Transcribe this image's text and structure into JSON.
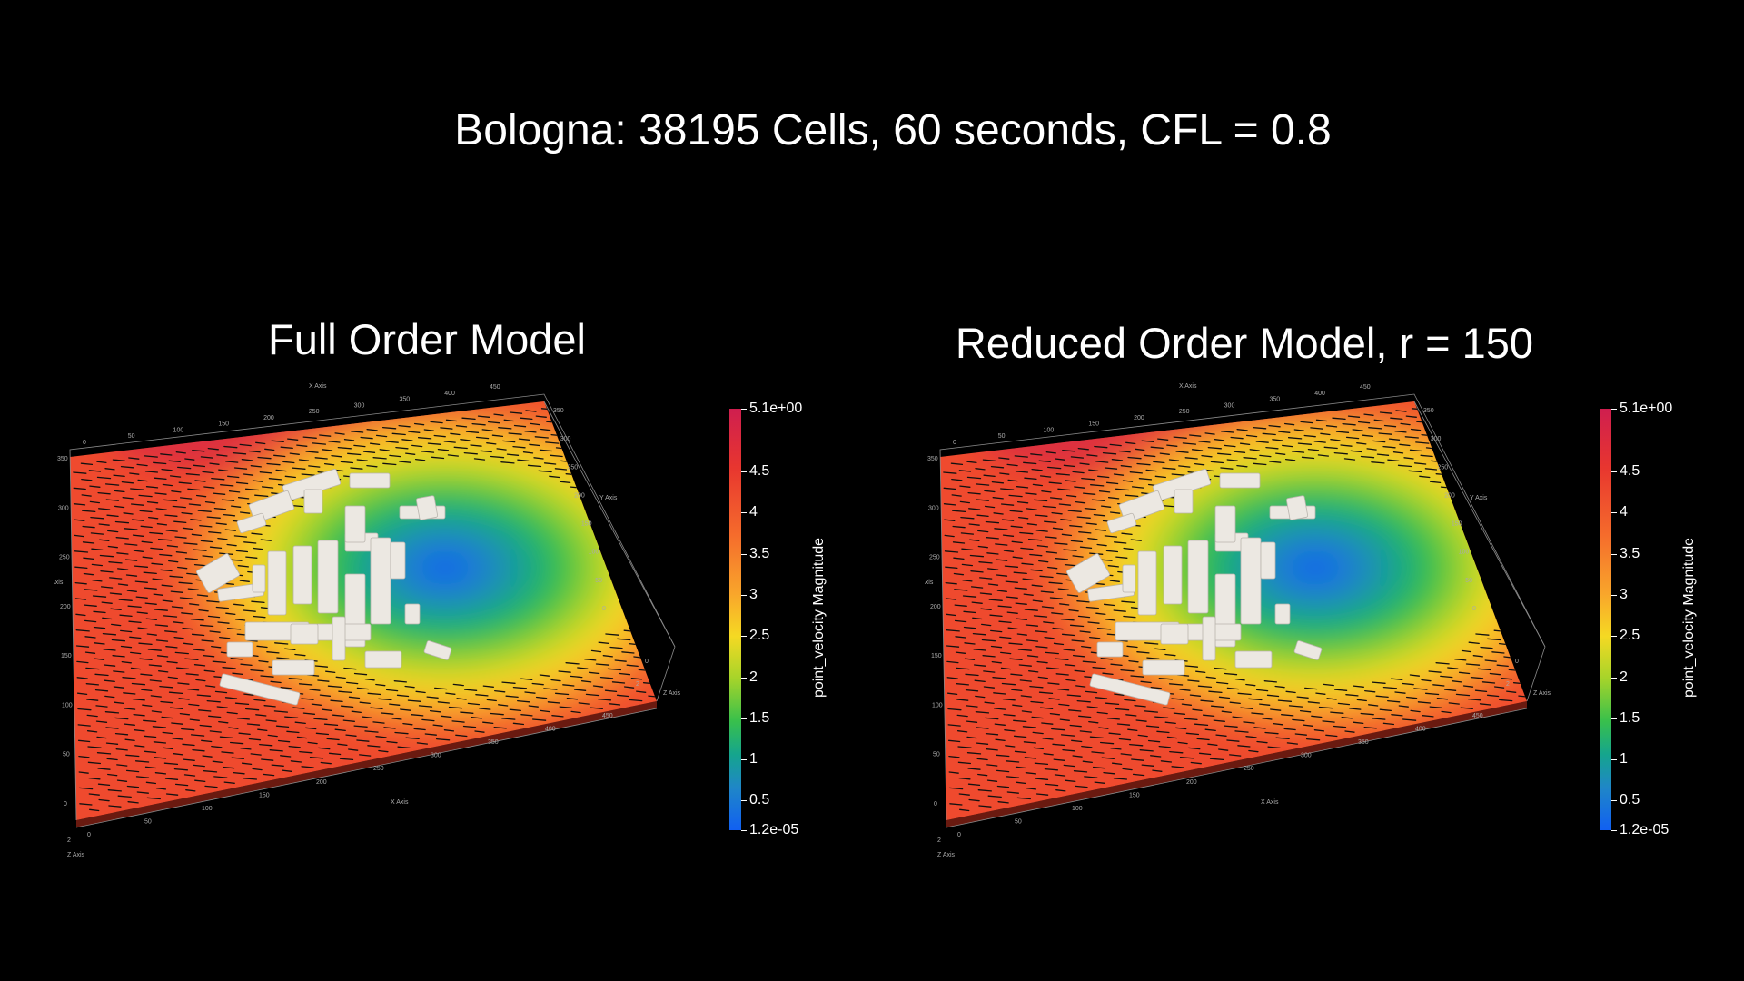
{
  "title": "Bologna: 38195 Cells, 60 seconds, CFL = 0.8",
  "panels": [
    {
      "title": "Full Order Model",
      "colorbar": {
        "label": "point_velocity Magnitude",
        "max_label": "5.1e+00",
        "min_label": "1.2e-05",
        "ticks": [
          "4.5",
          "4",
          "3.5",
          "3",
          "2.5",
          "2",
          "1.5",
          "1",
          "0.5"
        ]
      }
    },
    {
      "title": "Reduced Order Model, r = 150",
      "colorbar": {
        "label": "point_velocity Magnitude",
        "max_label": "5.1e+00",
        "min_label": "1.2e-05",
        "ticks": [
          "4.5",
          "4",
          "3.5",
          "3",
          "2.5",
          "2",
          "1.5",
          "1",
          "0.5"
        ]
      }
    }
  ],
  "colors": {
    "background": "#000000",
    "text": "#ffffff",
    "colormap": [
      "#cf1e4f",
      "#e8362f",
      "#f56c2c",
      "#f9a62b",
      "#f5d923",
      "#a6d42a",
      "#39c04b",
      "#15a58d",
      "#1f86c8",
      "#1160f2"
    ],
    "buildings": "#ece8e2"
  },
  "axes": {
    "x_label": "X Axis",
    "y_label": "Y Axis",
    "z_label": "Z Axis",
    "x_ticks": [
      "0",
      "50",
      "100",
      "150",
      "200",
      "250",
      "300",
      "350",
      "400",
      "450"
    ],
    "y_ticks": [
      "0",
      "50",
      "100",
      "150",
      "200",
      "250",
      "300",
      "350"
    ],
    "z_ticks": [
      "0",
      "2"
    ]
  }
}
